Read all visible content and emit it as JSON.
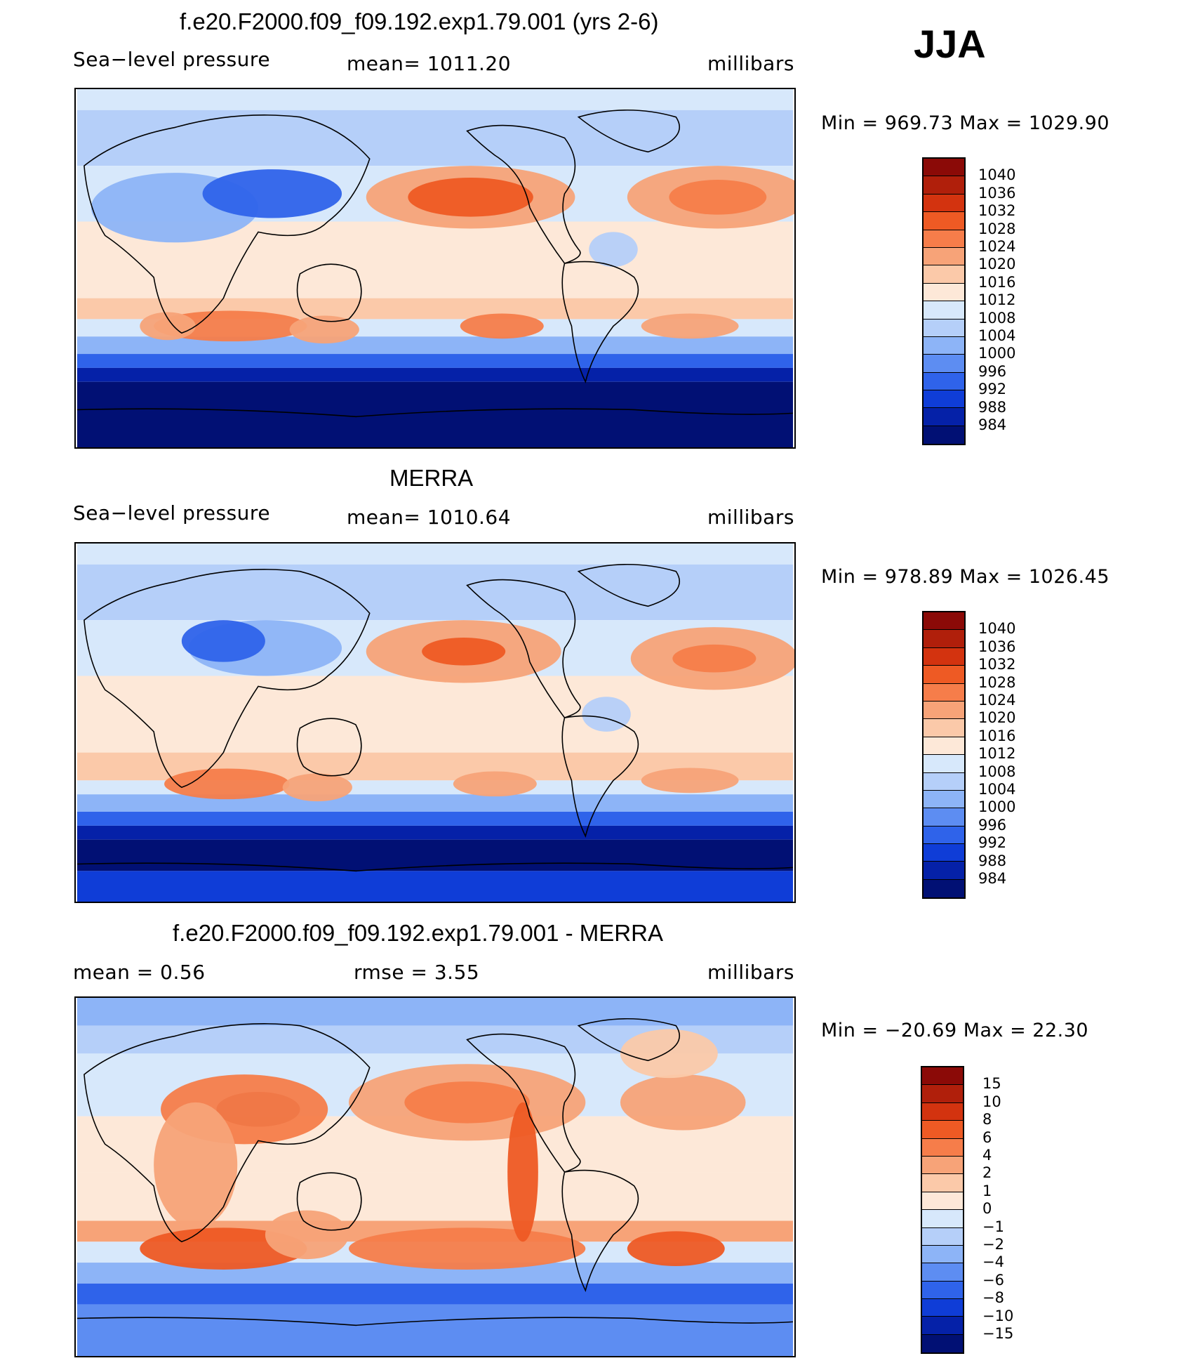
{
  "season": "JJA",
  "panels": [
    {
      "title": "f.e20.F2000.f09_f09.192.exp1.79.001 (yrs 2-6)",
      "left": "Sea−level  pressure",
      "center": "mean=  1011.20",
      "units": "millibars",
      "minmax": "Min  =  969.73  Max  =  1029.90",
      "colorbar": {
        "labels": [
          "1040",
          "1036",
          "1032",
          "1028",
          "1024",
          "1020",
          "1016",
          "1012",
          "1008",
          "1004",
          "1000",
          "996",
          "992",
          "988",
          "984"
        ],
        "colors": [
          "#8b0a07",
          "#b01f0b",
          "#d3330f",
          "#ee5a24",
          "#f67d4a",
          "#f7a378",
          "#fbc9a9",
          "#fde8d8",
          "#d7e8fb",
          "#b5cff9",
          "#8db4f7",
          "#5d8df2",
          "#2f63ea",
          "#0f3dd7",
          "#0521a8",
          "#011074"
        ]
      },
      "map_variant": "model"
    },
    {
      "title": "MERRA",
      "left": "Sea−level  pressure",
      "center": "mean=  1010.64",
      "units": "millibars",
      "minmax": "Min  =  978.89  Max  =  1026.45",
      "colorbar": {
        "labels": [
          "1040",
          "1036",
          "1032",
          "1028",
          "1024",
          "1020",
          "1016",
          "1012",
          "1008",
          "1004",
          "1000",
          "996",
          "992",
          "988",
          "984"
        ],
        "colors": [
          "#8b0a07",
          "#b01f0b",
          "#d3330f",
          "#ee5a24",
          "#f67d4a",
          "#f7a378",
          "#fbc9a9",
          "#fde8d8",
          "#d7e8fb",
          "#b5cff9",
          "#8db4f7",
          "#5d8df2",
          "#2f63ea",
          "#0f3dd7",
          "#0521a8",
          "#011074"
        ]
      },
      "map_variant": "obs"
    },
    {
      "title": "f.e20.F2000.f09_f09.192.exp1.79.001 - MERRA",
      "left": "mean  =      0.56",
      "center": "rmse  =      3.55",
      "units": "millibars",
      "minmax": "Min  =  −20.69  Max  =     22.30",
      "colorbar": {
        "labels": [
          "15",
          "10",
          "8",
          "6",
          "4",
          "2",
          "1",
          "0",
          "−1",
          "−2",
          "−4",
          "−6",
          "−8",
          "−10",
          "−15"
        ],
        "colors": [
          "#8b0a07",
          "#b01f0b",
          "#d3330f",
          "#ee5a24",
          "#f67d4a",
          "#f7a378",
          "#fbc9a9",
          "#fde8d8",
          "#d7e8fb",
          "#b5cff9",
          "#8db4f7",
          "#5d8df2",
          "#2f63ea",
          "#0f3dd7",
          "#0521a8",
          "#011074"
        ]
      },
      "map_variant": "diff"
    }
  ]
}
